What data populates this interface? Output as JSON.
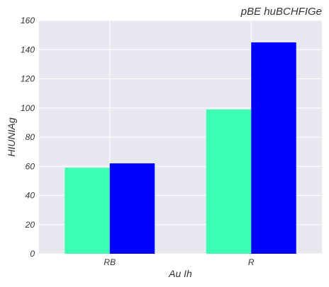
{
  "chart_data": {
    "type": "bar",
    "title": "pBE huBCHFIGe",
    "xlabel": "Au Ih",
    "ylabel": "HIUNIAg",
    "categories": [
      "RB",
      "R"
    ],
    "series": [
      {
        "color": "#3cffb4",
        "values": [
          59,
          99
        ]
      },
      {
        "color": "#0000ff",
        "values": [
          62,
          145
        ]
      }
    ],
    "ylim": [
      0,
      160
    ],
    "yticks": [
      0,
      20,
      40,
      60,
      80,
      100,
      120,
      140,
      160
    ],
    "grid": true,
    "plot_background": "#e8e8f0"
  }
}
